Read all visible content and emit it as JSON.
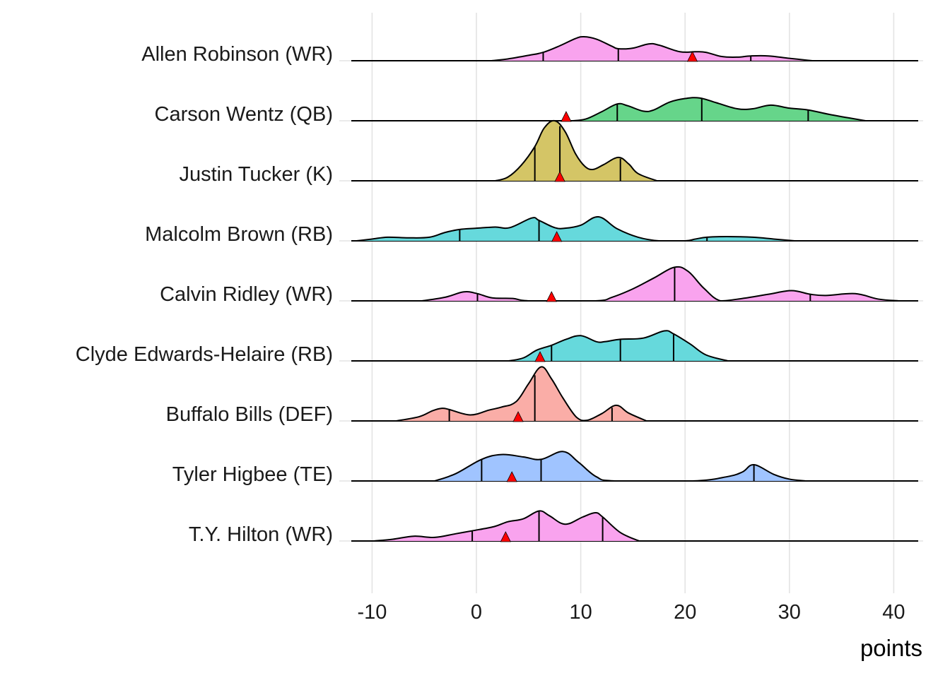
{
  "chart_data": {
    "type": "ridgeline",
    "title": "",
    "xlabel": "points",
    "ylabel": "",
    "xlim": [
      -12,
      42.5
    ],
    "x_ticks": [
      -10,
      0,
      10,
      20,
      30,
      40
    ],
    "x_tick_labels": [
      "-10",
      "0",
      "10",
      "20",
      "30",
      "40"
    ],
    "grid": true,
    "legend": "none",
    "marker": {
      "shape": "triangle",
      "color": "#FF0000",
      "meaning": "point estimate"
    },
    "series": [
      {
        "name": "Allen Robinson (WR)",
        "color": "#F9A3EE",
        "quantiles": [
          6.4,
          13.6,
          26.3
        ],
        "marker_x": 20.7,
        "density": [
          [
            1.4,
            0
          ],
          [
            3,
            0.03
          ],
          [
            5,
            0.09
          ],
          [
            6.4,
            0.14
          ],
          [
            8,
            0.25
          ],
          [
            9.5,
            0.37
          ],
          [
            10.3,
            0.4
          ],
          [
            11.5,
            0.36
          ],
          [
            13,
            0.24
          ],
          [
            13.6,
            0.2
          ],
          [
            15,
            0.21
          ],
          [
            16.5,
            0.28
          ],
          [
            17.5,
            0.26
          ],
          [
            19.5,
            0.15
          ],
          [
            21,
            0.15
          ],
          [
            22,
            0.14
          ],
          [
            23.5,
            0.07
          ],
          [
            25,
            0.06
          ],
          [
            26.3,
            0.08
          ],
          [
            28,
            0.08
          ],
          [
            30,
            0.04
          ],
          [
            32.2,
            0
          ]
        ]
      },
      {
        "name": "Carson Wentz (QB)",
        "color": "#66D58A",
        "quantiles": [
          13.5,
          21.6,
          31.8
        ],
        "marker_x": 8.6,
        "density": [
          [
            9.2,
            0
          ],
          [
            10.5,
            0.03
          ],
          [
            12,
            0.15
          ],
          [
            13.5,
            0.28
          ],
          [
            14.5,
            0.25
          ],
          [
            16,
            0.16
          ],
          [
            17,
            0.18
          ],
          [
            18.5,
            0.31
          ],
          [
            20,
            0.37
          ],
          [
            21.4,
            0.38
          ],
          [
            23,
            0.3
          ],
          [
            25,
            0.2
          ],
          [
            26.5,
            0.2
          ],
          [
            28.2,
            0.26
          ],
          [
            30,
            0.21
          ],
          [
            31.8,
            0.18
          ],
          [
            34,
            0.1
          ],
          [
            37.3,
            0
          ]
        ]
      },
      {
        "name": "Justin Tucker (K)",
        "color": "#D4C566",
        "quantiles": [
          5.6,
          8.0,
          13.8
        ],
        "marker_x": 8.0,
        "density": [
          [
            1.8,
            0
          ],
          [
            3,
            0.06
          ],
          [
            4.3,
            0.26
          ],
          [
            5.6,
            0.57
          ],
          [
            6.5,
            0.88
          ],
          [
            7.5,
            1.0
          ],
          [
            8.5,
            0.82
          ],
          [
            9.5,
            0.45
          ],
          [
            10.4,
            0.24
          ],
          [
            11.2,
            0.19
          ],
          [
            12.2,
            0.27
          ],
          [
            13.6,
            0.39
          ],
          [
            14.6,
            0.28
          ],
          [
            15.5,
            0.12
          ],
          [
            17.3,
            0
          ]
        ]
      },
      {
        "name": "Malcolm Brown (RB)",
        "color": "#66D9DC",
        "quantiles": [
          -1.6,
          6.0,
          22.1
        ],
        "marker_x": 7.7,
        "density": [
          [
            -11.5,
            0
          ],
          [
            -10,
            0.03
          ],
          [
            -8.5,
            0.06
          ],
          [
            -6.5,
            0.05
          ],
          [
            -4.5,
            0.06
          ],
          [
            -3,
            0.14
          ],
          [
            -1.6,
            0.19
          ],
          [
            0,
            0.21
          ],
          [
            1.8,
            0.23
          ],
          [
            3.2,
            0.22
          ],
          [
            5.3,
            0.38
          ],
          [
            6.0,
            0.34
          ],
          [
            7.5,
            0.22
          ],
          [
            8.5,
            0.21
          ],
          [
            10,
            0.26
          ],
          [
            11.7,
            0.4
          ],
          [
            13.5,
            0.2
          ],
          [
            15.5,
            0.06
          ],
          [
            17.5,
            0
          ],
          [
            20,
            0
          ],
          [
            21,
            0.03
          ],
          [
            22.1,
            0.06
          ],
          [
            24,
            0.07
          ],
          [
            26.5,
            0.06
          ],
          [
            28.5,
            0.03
          ],
          [
            30.5,
            0
          ]
        ]
      },
      {
        "name": "Calvin Ridley (WR)",
        "color": "#F9A3EE",
        "quantiles": [
          0.1,
          19.0,
          32.0
        ],
        "marker_x": 7.2,
        "density": [
          [
            -5.2,
            0
          ],
          [
            -3,
            0.06
          ],
          [
            -1.2,
            0.15
          ],
          [
            0.1,
            0.12
          ],
          [
            1.5,
            0.05
          ],
          [
            3.5,
            0.04
          ],
          [
            5.2,
            0
          ],
          [
            11.4,
            0
          ],
          [
            13,
            0.06
          ],
          [
            15,
            0.2
          ],
          [
            17,
            0.38
          ],
          [
            19,
            0.56
          ],
          [
            20.3,
            0.49
          ],
          [
            21.8,
            0.21
          ],
          [
            23.4,
            0
          ],
          [
            25.5,
            0.04
          ],
          [
            28,
            0.11
          ],
          [
            30.2,
            0.17
          ],
          [
            32,
            0.11
          ],
          [
            33.5,
            0.09
          ],
          [
            36.3,
            0.12
          ],
          [
            38.5,
            0.03
          ],
          [
            40.5,
            0
          ]
        ]
      },
      {
        "name": "Clyde Edwards-Helaire (RB)",
        "color": "#66D9DC",
        "quantiles": [
          7.2,
          13.8,
          18.9
        ],
        "marker_x": 6.1,
        "density": [
          [
            3.1,
            0
          ],
          [
            4.5,
            0.05
          ],
          [
            5.8,
            0.18
          ],
          [
            7.2,
            0.26
          ],
          [
            8.6,
            0.36
          ],
          [
            10,
            0.42
          ],
          [
            11.5,
            0.32
          ],
          [
            12.3,
            0.32
          ],
          [
            13.8,
            0.36
          ],
          [
            16,
            0.38
          ],
          [
            18,
            0.5
          ],
          [
            18.9,
            0.45
          ],
          [
            20.5,
            0.28
          ],
          [
            22,
            0.1
          ],
          [
            24.1,
            0
          ]
        ]
      },
      {
        "name": "Buffalo Bills (DEF)",
        "color": "#FAADA7",
        "quantiles": [
          -2.6,
          5.6,
          13.0
        ],
        "marker_x": 4.0,
        "density": [
          [
            -7.7,
            0
          ],
          [
            -5.5,
            0.07
          ],
          [
            -4.2,
            0.17
          ],
          [
            -3.3,
            0.21
          ],
          [
            -2.6,
            0.19
          ],
          [
            -0.6,
            0.1
          ],
          [
            1.2,
            0.18
          ],
          [
            2.4,
            0.23
          ],
          [
            3.8,
            0.32
          ],
          [
            5.0,
            0.62
          ],
          [
            6.2,
            0.9
          ],
          [
            7.2,
            0.7
          ],
          [
            8.3,
            0.38
          ],
          [
            9.6,
            0.06
          ],
          [
            10.6,
            0.01
          ],
          [
            12,
            0.12
          ],
          [
            13.4,
            0.26
          ],
          [
            14.6,
            0.13
          ],
          [
            16.3,
            0
          ]
        ]
      },
      {
        "name": "Tyler Higbee (TE)",
        "color": "#A0C4FF",
        "quantiles": [
          0.5,
          6.2,
          26.6
        ],
        "marker_x": 3.4,
        "density": [
          [
            -4,
            0
          ],
          [
            -2,
            0.12
          ],
          [
            0.5,
            0.36
          ],
          [
            2.4,
            0.44
          ],
          [
            4.5,
            0.4
          ],
          [
            6.2,
            0.36
          ],
          [
            8.3,
            0.49
          ],
          [
            9.8,
            0.31
          ],
          [
            11.5,
            0.07
          ],
          [
            13.3,
            0
          ],
          [
            20.7,
            0
          ],
          [
            24,
            0.07
          ],
          [
            25.5,
            0.15
          ],
          [
            26.6,
            0.27
          ],
          [
            28.5,
            0.11
          ],
          [
            30,
            0.03
          ],
          [
            31.6,
            0
          ]
        ]
      },
      {
        "name": "T.Y. Hilton (WR)",
        "color": "#F9A3EE",
        "quantiles": [
          -0.4,
          6.0,
          12.1
        ],
        "marker_x": 2.8,
        "density": [
          [
            -9.8,
            0
          ],
          [
            -8,
            0.03
          ],
          [
            -6,
            0.08
          ],
          [
            -4,
            0.06
          ],
          [
            -2,
            0.12
          ],
          [
            -0.4,
            0.17
          ],
          [
            1.7,
            0.24
          ],
          [
            3,
            0.32
          ],
          [
            4.5,
            0.37
          ],
          [
            6,
            0.5
          ],
          [
            7,
            0.42
          ],
          [
            8.5,
            0.28
          ],
          [
            10.2,
            0.4
          ],
          [
            11.4,
            0.47
          ],
          [
            12.1,
            0.4
          ],
          [
            13.8,
            0.14
          ],
          [
            15.6,
            0
          ]
        ]
      }
    ]
  }
}
